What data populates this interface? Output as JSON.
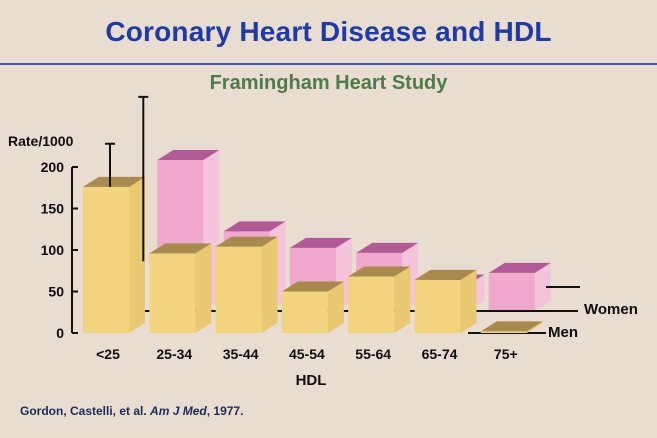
{
  "header": {
    "title": "Coronary Heart Disease and HDL",
    "subtitle": "Framingham Heart Study"
  },
  "footer": {
    "authors": "Gordon, Castelli, et al.",
    "journal": "Am J Med",
    "year": ", 1977."
  },
  "colors": {
    "men_front": "#f2d47e",
    "men_top": "#a8894e",
    "men_side": "#e8c870",
    "women_front": "#f0a8cc",
    "women_top": "#b25a95",
    "women_side": "#f4c4db",
    "title": "#1d3aa6",
    "subtitle": "#4f7a4a"
  },
  "chart_data": {
    "type": "bar",
    "title": "Coronary Heart Disease and HDL",
    "subtitle": "Framingham Heart Study",
    "xlabel": "HDL",
    "ylabel": "Rate/1000",
    "ylim": [
      0,
      200
    ],
    "yticks": [
      0,
      50,
      100,
      150,
      200
    ],
    "categories": [
      "<25",
      "25-34",
      "35-44",
      "45-54",
      "55-64",
      "65-74",
      "75+"
    ],
    "series": [
      {
        "name": "Men",
        "values": [
          176,
          96,
          104,
          50,
          68,
          64,
          2
        ]
      },
      {
        "name": "Women",
        "values": [
          null,
          182,
          96,
          76,
          70,
          32,
          46
        ]
      }
    ],
    "error_bars": [
      {
        "category": "<25",
        "series": "Men",
        "upper": 228,
        "lower": 176
      },
      {
        "category": "25-34",
        "series": "Women",
        "upper": 258,
        "lower": 60
      }
    ]
  }
}
